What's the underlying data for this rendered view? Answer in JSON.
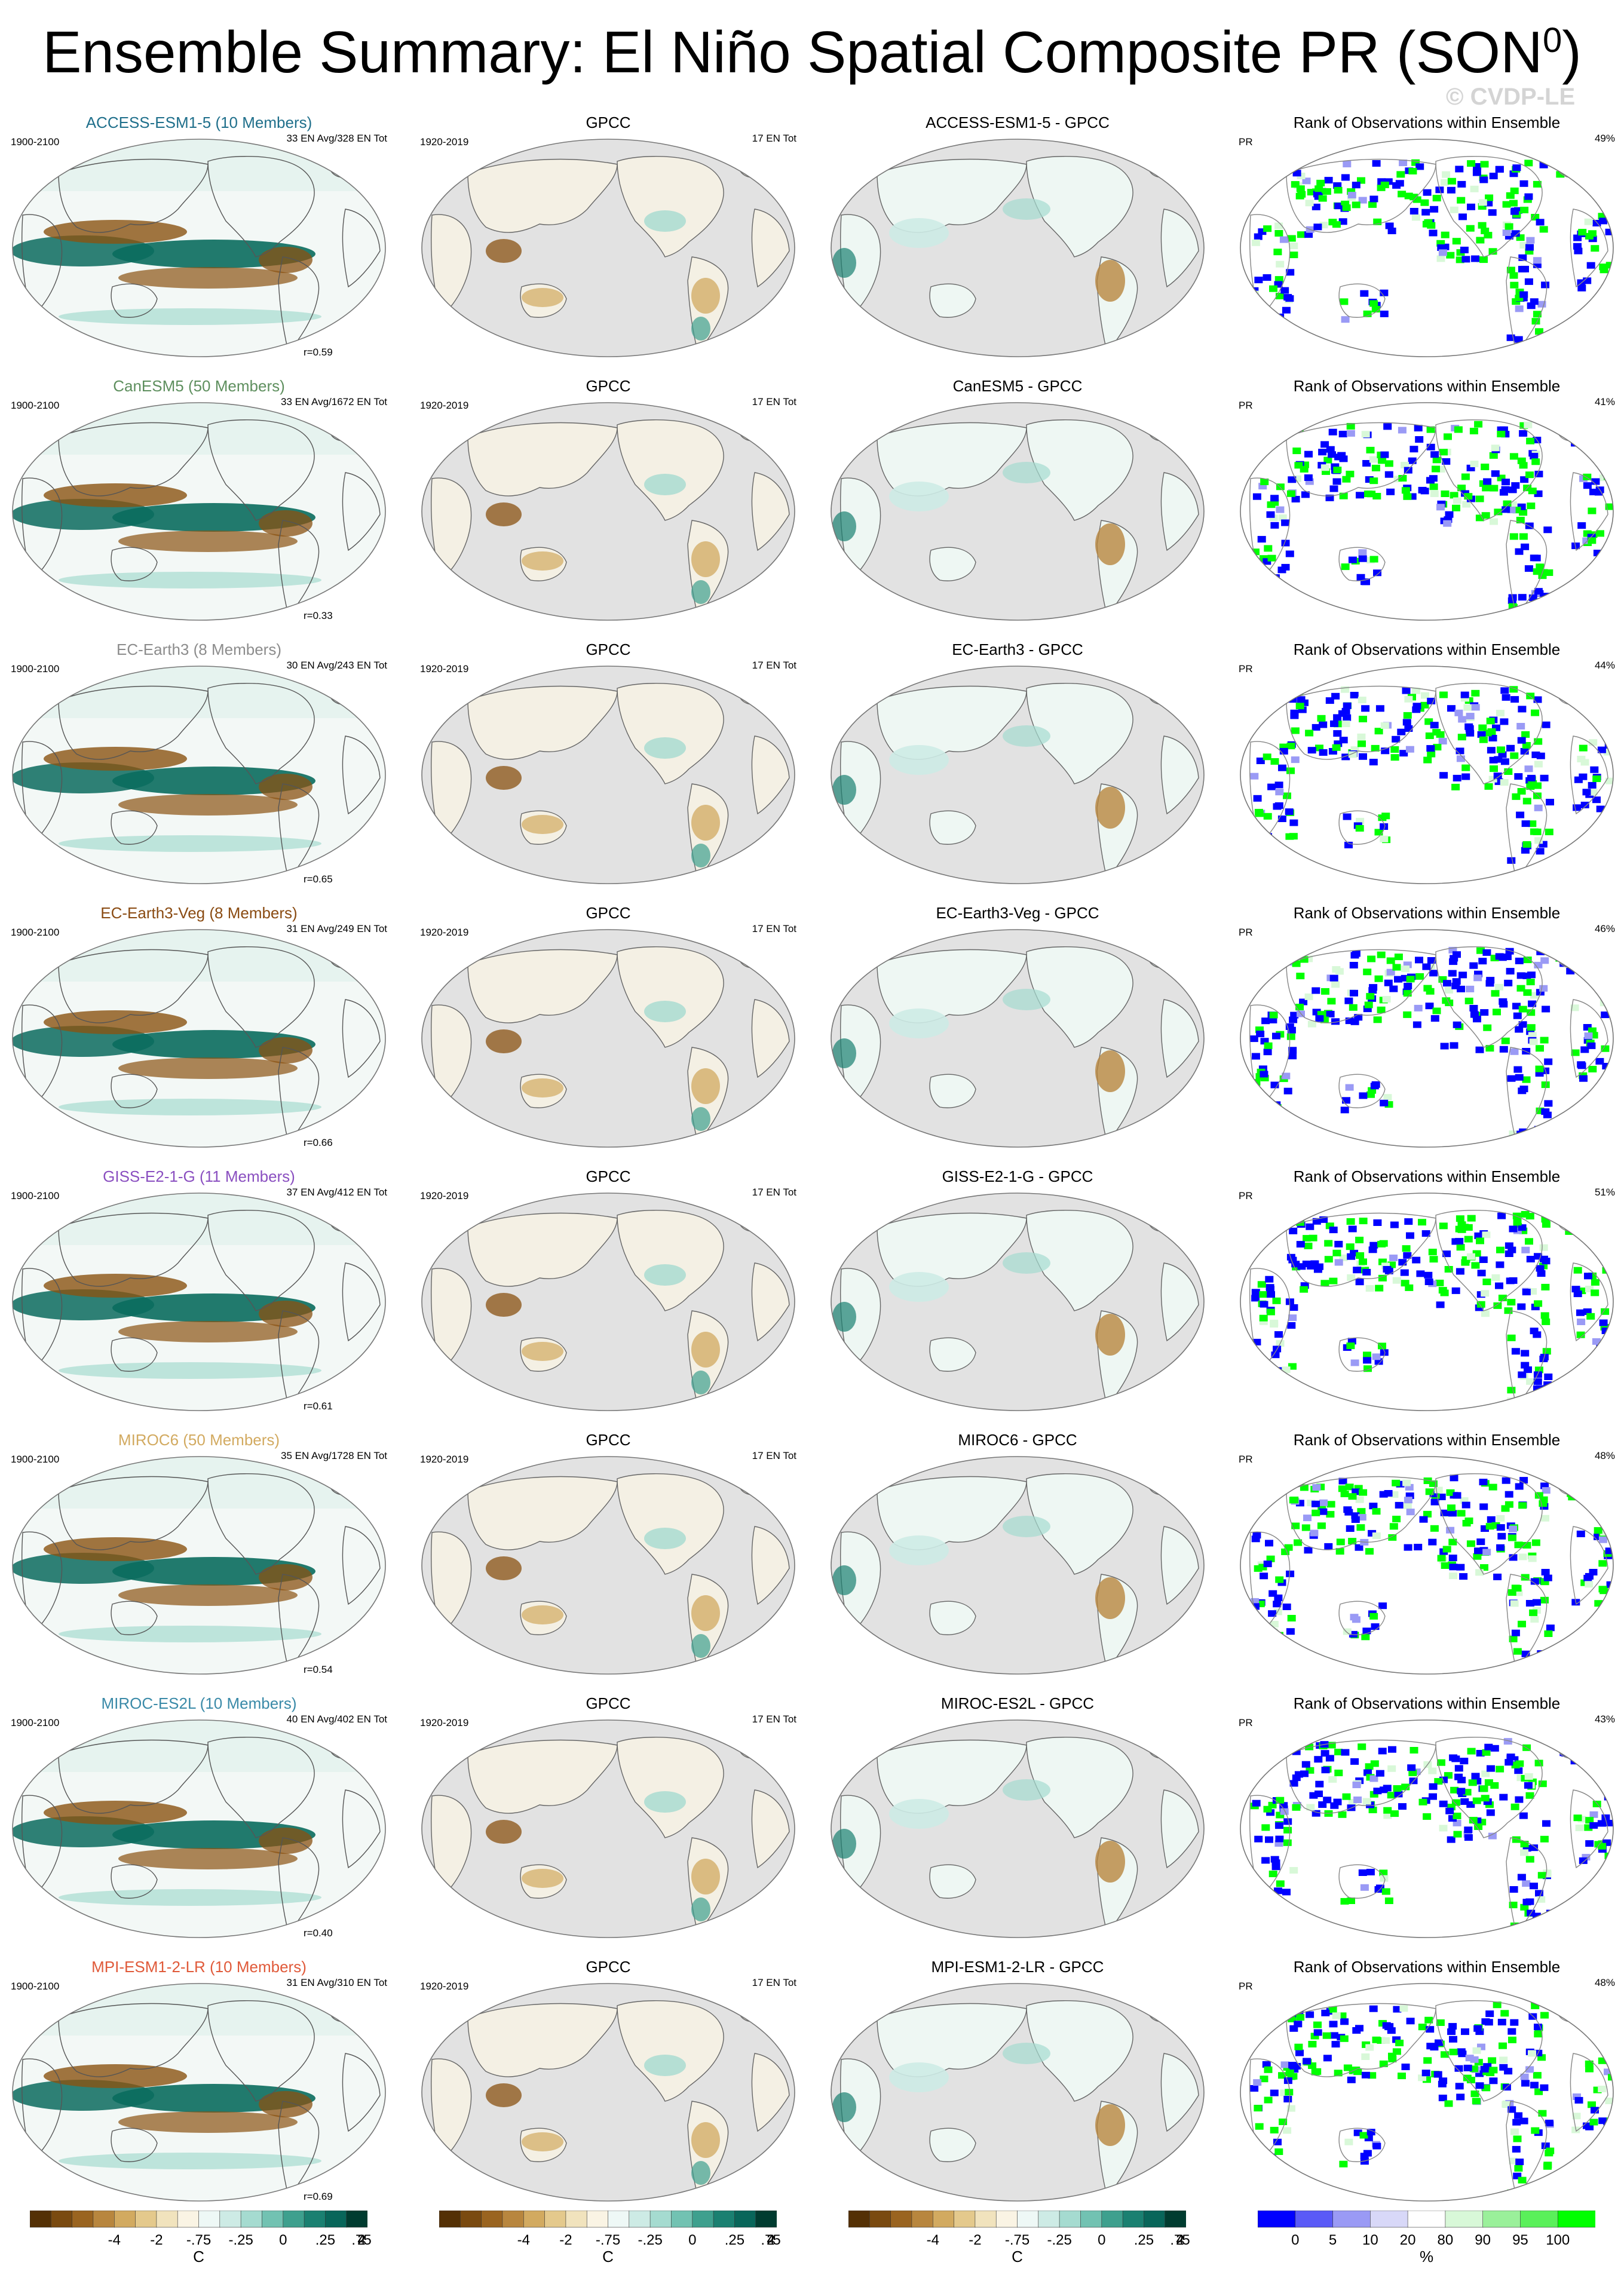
{
  "title": "Ensemble Summary: El Niño Spatial Composite PR (SON",
  "title_superscript": "0",
  "title_close": ")",
  "watermark": "© CVDP-LE",
  "obs_title": "GPCC",
  "obs_years": "1920-2019",
  "obs_count": "17 EN Tot",
  "model_years": "1900-2100",
  "rank_title": "Rank of Observations within Ensemble",
  "rank_var": "PR",
  "colors": {
    "dry": "#8a5212",
    "wet": "#0a6b5e",
    "ocean_grey": "#e2e2e2",
    "rank_low": "#0000ff",
    "rank_high": "#00ff00"
  },
  "rows": [
    {
      "model": "ACCESS-ESM1-5 (10 Members)",
      "model_color": "#1f6f8b",
      "counts": "33 EN Avg/328 EN Tot",
      "r": "r=0.59",
      "diff_title": "ACCESS-ESM1-5 - GPCC",
      "rank_pct": "49%"
    },
    {
      "model": "CanESM5 (50 Members)",
      "model_color": "#5e8f5e",
      "counts": "33 EN Avg/1672 EN Tot",
      "r": "r=0.33",
      "diff_title": "CanESM5 - GPCC",
      "rank_pct": "41%"
    },
    {
      "model": "EC-Earth3 (8 Members)",
      "model_color": "#8c8c8c",
      "counts": "30 EN Avg/243 EN Tot",
      "r": "r=0.65",
      "diff_title": "EC-Earth3 - GPCC",
      "rank_pct": "44%"
    },
    {
      "model": "EC-Earth3-Veg (8 Members)",
      "model_color": "#8a4b12",
      "counts": "31 EN Avg/249 EN Tot",
      "r": "r=0.66",
      "diff_title": "EC-Earth3-Veg - GPCC",
      "rank_pct": "46%"
    },
    {
      "model": "GISS-E2-1-G (11 Members)",
      "model_color": "#8a4fc0",
      "counts": "37 EN Avg/412 EN Tot",
      "r": "r=0.61",
      "diff_title": "GISS-E2-1-G - GPCC",
      "rank_pct": "51%"
    },
    {
      "model": "MIROC6 (50 Members)",
      "model_color": "#d2aa60",
      "counts": "35 EN Avg/1728 EN Tot",
      "r": "r=0.54",
      "diff_title": "MIROC6 - GPCC",
      "rank_pct": "48%"
    },
    {
      "model": "MIROC-ES2L (10 Members)",
      "model_color": "#3a8aa8",
      "counts": "40 EN Avg/402 EN Tot",
      "r": "r=0.40",
      "diff_title": "MIROC-ES2L - GPCC",
      "rank_pct": "43%"
    },
    {
      "model": "MPI-ESM1-2-LR (10 Members)",
      "model_color": "#e05a3a",
      "counts": "31 EN Avg/310 EN Tot",
      "r": "r=0.69",
      "diff_title": "MPI-ESM1-2-LR - GPCC",
      "rank_pct": "48%"
    }
  ],
  "colorbar": {
    "ticks": [
      "-4",
      "-2",
      "-.75",
      "-.25",
      "0",
      ".25",
      ".75",
      "2",
      "4"
    ],
    "unit": "C",
    "colors": [
      "#543005",
      "#7a4a10",
      "#9a6420",
      "#b8863e",
      "#d2aa60",
      "#e4c98c",
      "#f1e3bd",
      "#faf4e4",
      "#eef8f6",
      "#cdebe5",
      "#a5dbd0",
      "#72c2b2",
      "#3ea08e",
      "#1a8071",
      "#08665a",
      "#003c30"
    ]
  },
  "rank_colorbar": {
    "ticks": [
      "0",
      "5",
      "10",
      "20",
      "80",
      "90",
      "95",
      "100"
    ],
    "unit": "%",
    "colors": [
      "#0000ff",
      "#5a5af7",
      "#9a9af5",
      "#d8d8f8",
      "#ffffff",
      "#d8f8d8",
      "#9af09a",
      "#5af05a",
      "#00ff00"
    ]
  }
}
